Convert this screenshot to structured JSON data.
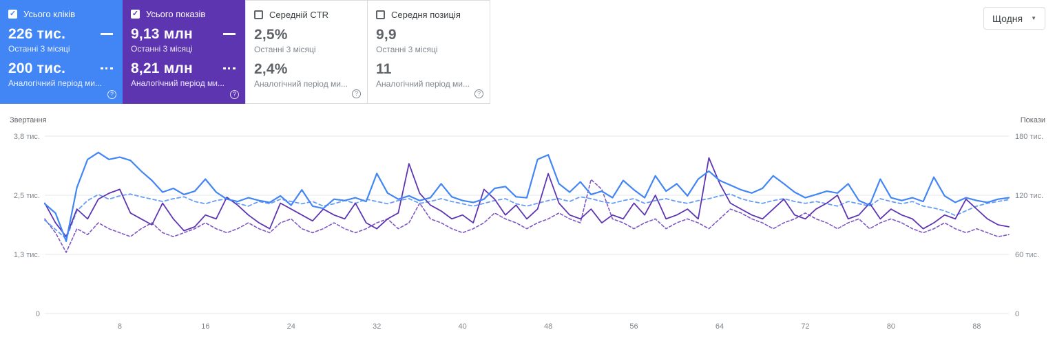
{
  "header": {
    "date_filter": {
      "label": "Щодня",
      "caret": "▼"
    }
  },
  "cards": [
    {
      "id": "total-clicks",
      "label": "Усього кліків",
      "checked": true,
      "check_glyph": "✓",
      "accent_color": "#4285f4",
      "current_value": "226 тис.",
      "current_period": "Останні 3 місяці",
      "previous_value": "200 тис.",
      "previous_period": "Аналогічний період ми...",
      "help": "?"
    },
    {
      "id": "total-impressions",
      "label": "Усього показів",
      "checked": true,
      "check_glyph": "✓",
      "accent_color": "#5e35b1",
      "current_value": "9,13 млн",
      "current_period": "Останні 3 місяці",
      "previous_value": "8,21 млн",
      "previous_period": "Аналогічний період ми...",
      "help": "?"
    },
    {
      "id": "average-ctr",
      "label": "Середній CTR",
      "checked": false,
      "check_glyph": "",
      "accent_color": "#ffffff",
      "current_value": "2,5%",
      "current_period": "Останні 3 місяці",
      "previous_value": "2,4%",
      "previous_period": "Аналогічний період ми...",
      "help": "?"
    },
    {
      "id": "average-position",
      "label": "Середня позиція",
      "checked": false,
      "check_glyph": "",
      "accent_color": "#ffffff",
      "current_value": "9,9",
      "current_period": "Останні 3 місяці",
      "previous_value": "11",
      "previous_period": "Аналогічний період ми...",
      "help": "?"
    }
  ],
  "chart_data": {
    "type": "line",
    "grid": true,
    "legend": "none",
    "left_axis": {
      "title": "Звертання",
      "max": 3.8,
      "ticks": [
        "3,8 тис.",
        "2,5 тис.",
        "1,3 тис.",
        "0"
      ]
    },
    "right_axis": {
      "title": "Покази",
      "max": 180,
      "ticks": [
        "180 тис.",
        "120 тис.",
        "60 тис.",
        "0"
      ]
    },
    "x_ticks": [
      8,
      16,
      24,
      32,
      40,
      48,
      56,
      64,
      72,
      80,
      88
    ],
    "x_count": 91,
    "series": [
      {
        "id": "clicks-current",
        "name": "Усього кліків — Останні 3 місяці",
        "axis": "left",
        "color": "#4285f4",
        "dash": null,
        "width": 2.2,
        "z": 4,
        "values": [
          2.35,
          2.15,
          1.55,
          2.7,
          3.3,
          3.45,
          3.3,
          3.35,
          3.28,
          3.05,
          2.85,
          2.6,
          2.68,
          2.55,
          2.62,
          2.88,
          2.6,
          2.45,
          2.4,
          2.48,
          2.42,
          2.38,
          2.52,
          2.32,
          2.65,
          2.3,
          2.25,
          2.45,
          2.42,
          2.48,
          2.4,
          3.0,
          2.58,
          2.45,
          2.52,
          2.42,
          2.48,
          2.78,
          2.5,
          2.42,
          2.38,
          2.45,
          2.68,
          2.72,
          2.5,
          2.48,
          3.3,
          3.4,
          2.78,
          2.6,
          2.82,
          2.55,
          2.62,
          2.48,
          2.85,
          2.65,
          2.48,
          2.95,
          2.62,
          2.78,
          2.52,
          2.88,
          3.05,
          2.85,
          2.75,
          2.65,
          2.58,
          2.68,
          2.95,
          2.78,
          2.6,
          2.48,
          2.55,
          2.62,
          2.58,
          2.78,
          2.42,
          2.32,
          2.88,
          2.48,
          2.42,
          2.48,
          2.4,
          2.92,
          2.52,
          2.38,
          2.48,
          2.42,
          2.38,
          2.45,
          2.48
        ]
      },
      {
        "id": "clicks-previous",
        "name": "Усього кліків — Аналогічний період минулого року",
        "axis": "left",
        "color": "#669df6",
        "dash": "5 4",
        "width": 1.8,
        "z": 2,
        "values": [
          2.0,
          1.8,
          1.6,
          2.2,
          2.42,
          2.55,
          2.45,
          2.52,
          2.56,
          2.5,
          2.45,
          2.4,
          2.46,
          2.5,
          2.4,
          2.35,
          2.42,
          2.46,
          2.36,
          2.3,
          2.4,
          2.35,
          2.45,
          2.4,
          2.35,
          2.4,
          2.3,
          2.35,
          2.42,
          2.36,
          2.45,
          2.4,
          2.35,
          2.42,
          2.46,
          2.36,
          2.4,
          2.46,
          2.4,
          2.35,
          2.3,
          2.36,
          2.42,
          2.46,
          2.35,
          2.3,
          2.36,
          2.42,
          2.46,
          2.4,
          2.5,
          2.46,
          2.4,
          2.36,
          2.42,
          2.46,
          2.36,
          2.42,
          2.46,
          2.4,
          2.36,
          2.42,
          2.46,
          2.52,
          2.56,
          2.46,
          2.4,
          2.36,
          2.42,
          2.46,
          2.4,
          2.36,
          2.4,
          2.35,
          2.3,
          2.4,
          2.35,
          2.3,
          2.46,
          2.4,
          2.35,
          2.4,
          2.3,
          2.26,
          2.2,
          2.1,
          2.2,
          2.3,
          2.36,
          2.4,
          2.44
        ]
      },
      {
        "id": "impressions-current",
        "name": "Усього показів — Останні 3 місяці",
        "axis": "right",
        "color": "#5e35b1",
        "dash": null,
        "width": 1.8,
        "z": 3,
        "values": [
          112,
          92,
          78,
          106,
          96,
          116,
          122,
          126,
          102,
          96,
          90,
          112,
          96,
          84,
          88,
          100,
          96,
          118,
          110,
          100,
          92,
          86,
          112,
          106,
          100,
          94,
          106,
          100,
          96,
          112,
          92,
          86,
          96,
          102,
          152,
          122,
          110,
          104,
          96,
          100,
          92,
          126,
          116,
          100,
          110,
          96,
          106,
          142,
          112,
          100,
          96,
          106,
          92,
          100,
          96,
          112,
          100,
          120,
          96,
          100,
          106,
          96,
          158,
          132,
          112,
          106,
          100,
          96,
          106,
          116,
          100,
          96,
          106,
          112,
          120,
          96,
          100,
          112,
          96,
          106,
          100,
          96,
          86,
          92,
          100,
          96,
          116,
          106,
          96,
          90,
          88
        ]
      },
      {
        "id": "impressions-previous",
        "name": "Усього показів — Аналогічний період минулого року",
        "axis": "right",
        "color": "#7e57c2",
        "dash": "4 3",
        "width": 1.6,
        "z": 1,
        "values": [
          96,
          82,
          62,
          86,
          80,
          92,
          86,
          82,
          78,
          86,
          92,
          82,
          78,
          82,
          86,
          92,
          86,
          82,
          86,
          92,
          86,
          82,
          92,
          96,
          86,
          82,
          86,
          92,
          86,
          82,
          86,
          92,
          96,
          86,
          92,
          112,
          96,
          92,
          86,
          82,
          86,
          92,
          102,
          96,
          92,
          86,
          92,
          96,
          102,
          96,
          92,
          136,
          126,
          96,
          92,
          86,
          92,
          96,
          86,
          92,
          96,
          92,
          86,
          96,
          106,
          102,
          96,
          92,
          86,
          92,
          96,
          102,
          96,
          92,
          86,
          92,
          96,
          86,
          92,
          96,
          92,
          86,
          82,
          86,
          92,
          86,
          82,
          86,
          82,
          78,
          80
        ]
      }
    ]
  }
}
